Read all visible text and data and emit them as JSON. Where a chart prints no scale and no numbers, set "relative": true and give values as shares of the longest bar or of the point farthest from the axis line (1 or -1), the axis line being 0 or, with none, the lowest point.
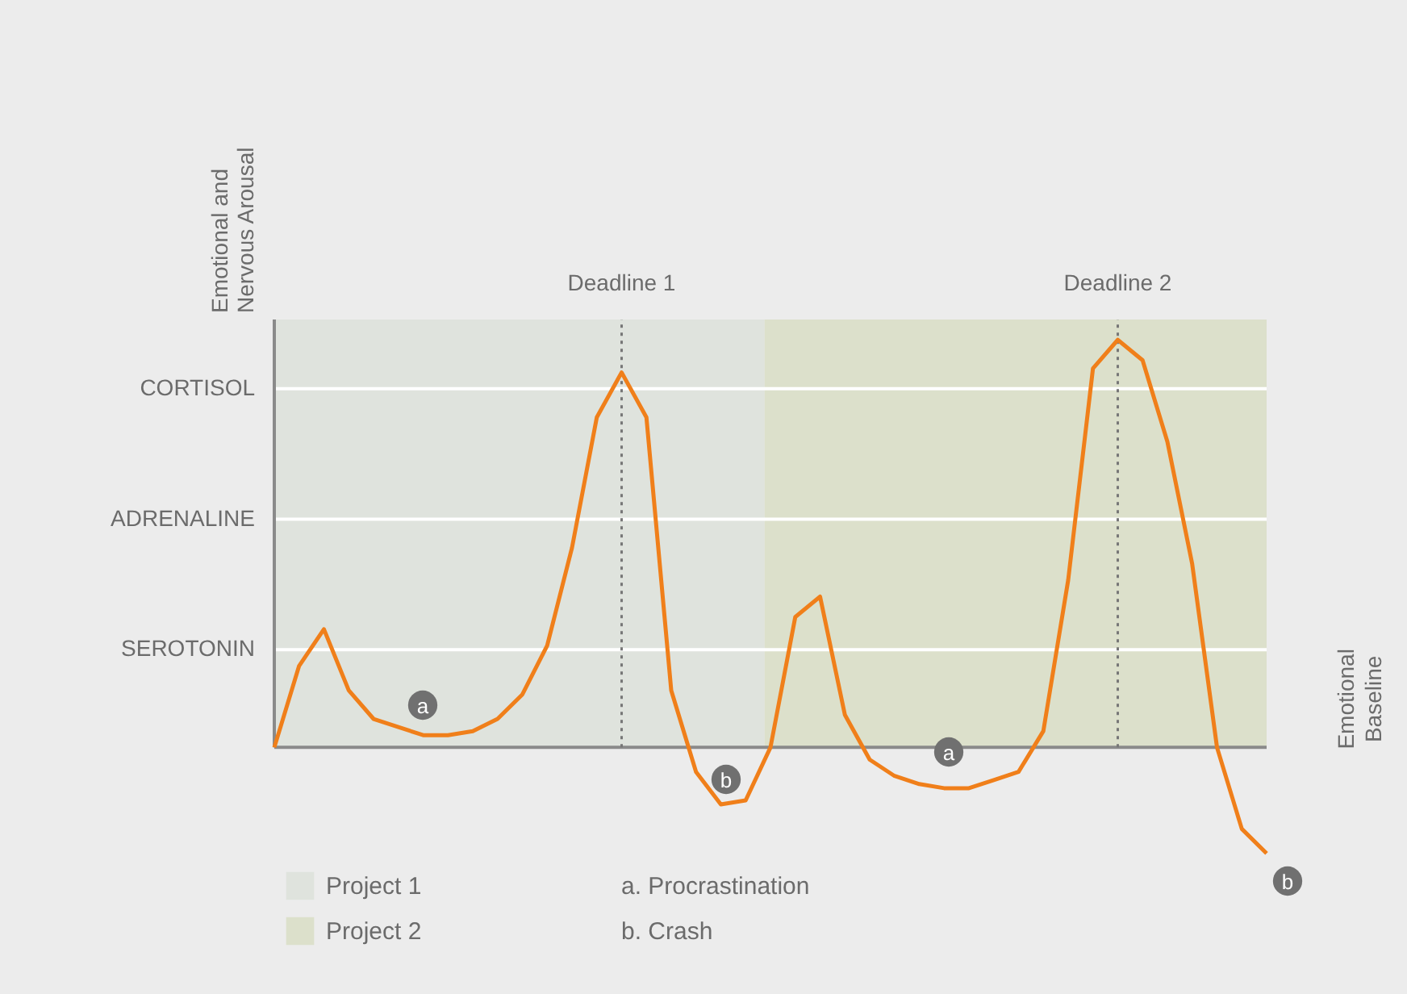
{
  "chart_data": {
    "type": "line",
    "relative": true,
    "ylabel": "Emotional and Nervous Arousal",
    "categories": [
      null,
      null,
      null,
      null,
      null,
      null,
      null,
      null,
      null,
      null,
      null,
      null,
      null,
      null,
      null,
      null,
      null,
      null,
      null,
      null,
      null,
      null,
      null,
      null,
      null,
      null,
      null,
      null,
      null,
      null,
      null,
      null,
      null,
      null,
      null,
      null,
      null,
      null,
      null,
      null,
      null
    ],
    "series": [
      {
        "color": "#f07f1a",
        "values": [
          0,
          0.2,
          0.29,
          0.14,
          0.07,
          0.05,
          0.03,
          0.03,
          0.04,
          0.07,
          0.13,
          0.25,
          0.49,
          0.81,
          0.92,
          0.81,
          0.14,
          -0.06,
          -0.14,
          -0.13,
          0,
          0.32,
          0.37,
          0.08,
          -0.03,
          -0.07,
          -0.09,
          -0.1,
          -0.1,
          -0.08,
          -0.06,
          0.04,
          0.41,
          0.93,
          1,
          0.95,
          0.75,
          0.45,
          0,
          -0.2,
          -0.26
        ]
      }
    ],
    "marker": "none",
    "line_style": "solid",
    "ref_lines": [
      {
        "axis": "y",
        "value": 0.24,
        "label": "SEROTONIN",
        "color": "#ffffff"
      },
      {
        "axis": "y",
        "value": 0.56,
        "label": "ADRENALINE",
        "color": "#ffffff"
      },
      {
        "axis": "y",
        "value": 0.88,
        "label": "CORTISOL",
        "color": "#ffffff"
      }
    ],
    "annotations": [
      "Deadline 1",
      "Deadline 2",
      "Project 1",
      "Project 2",
      "a",
      "b",
      "a",
      "b",
      "Emotional Baseline",
      "a. Procrastination",
      "b. Crash"
    ]
  }
}
